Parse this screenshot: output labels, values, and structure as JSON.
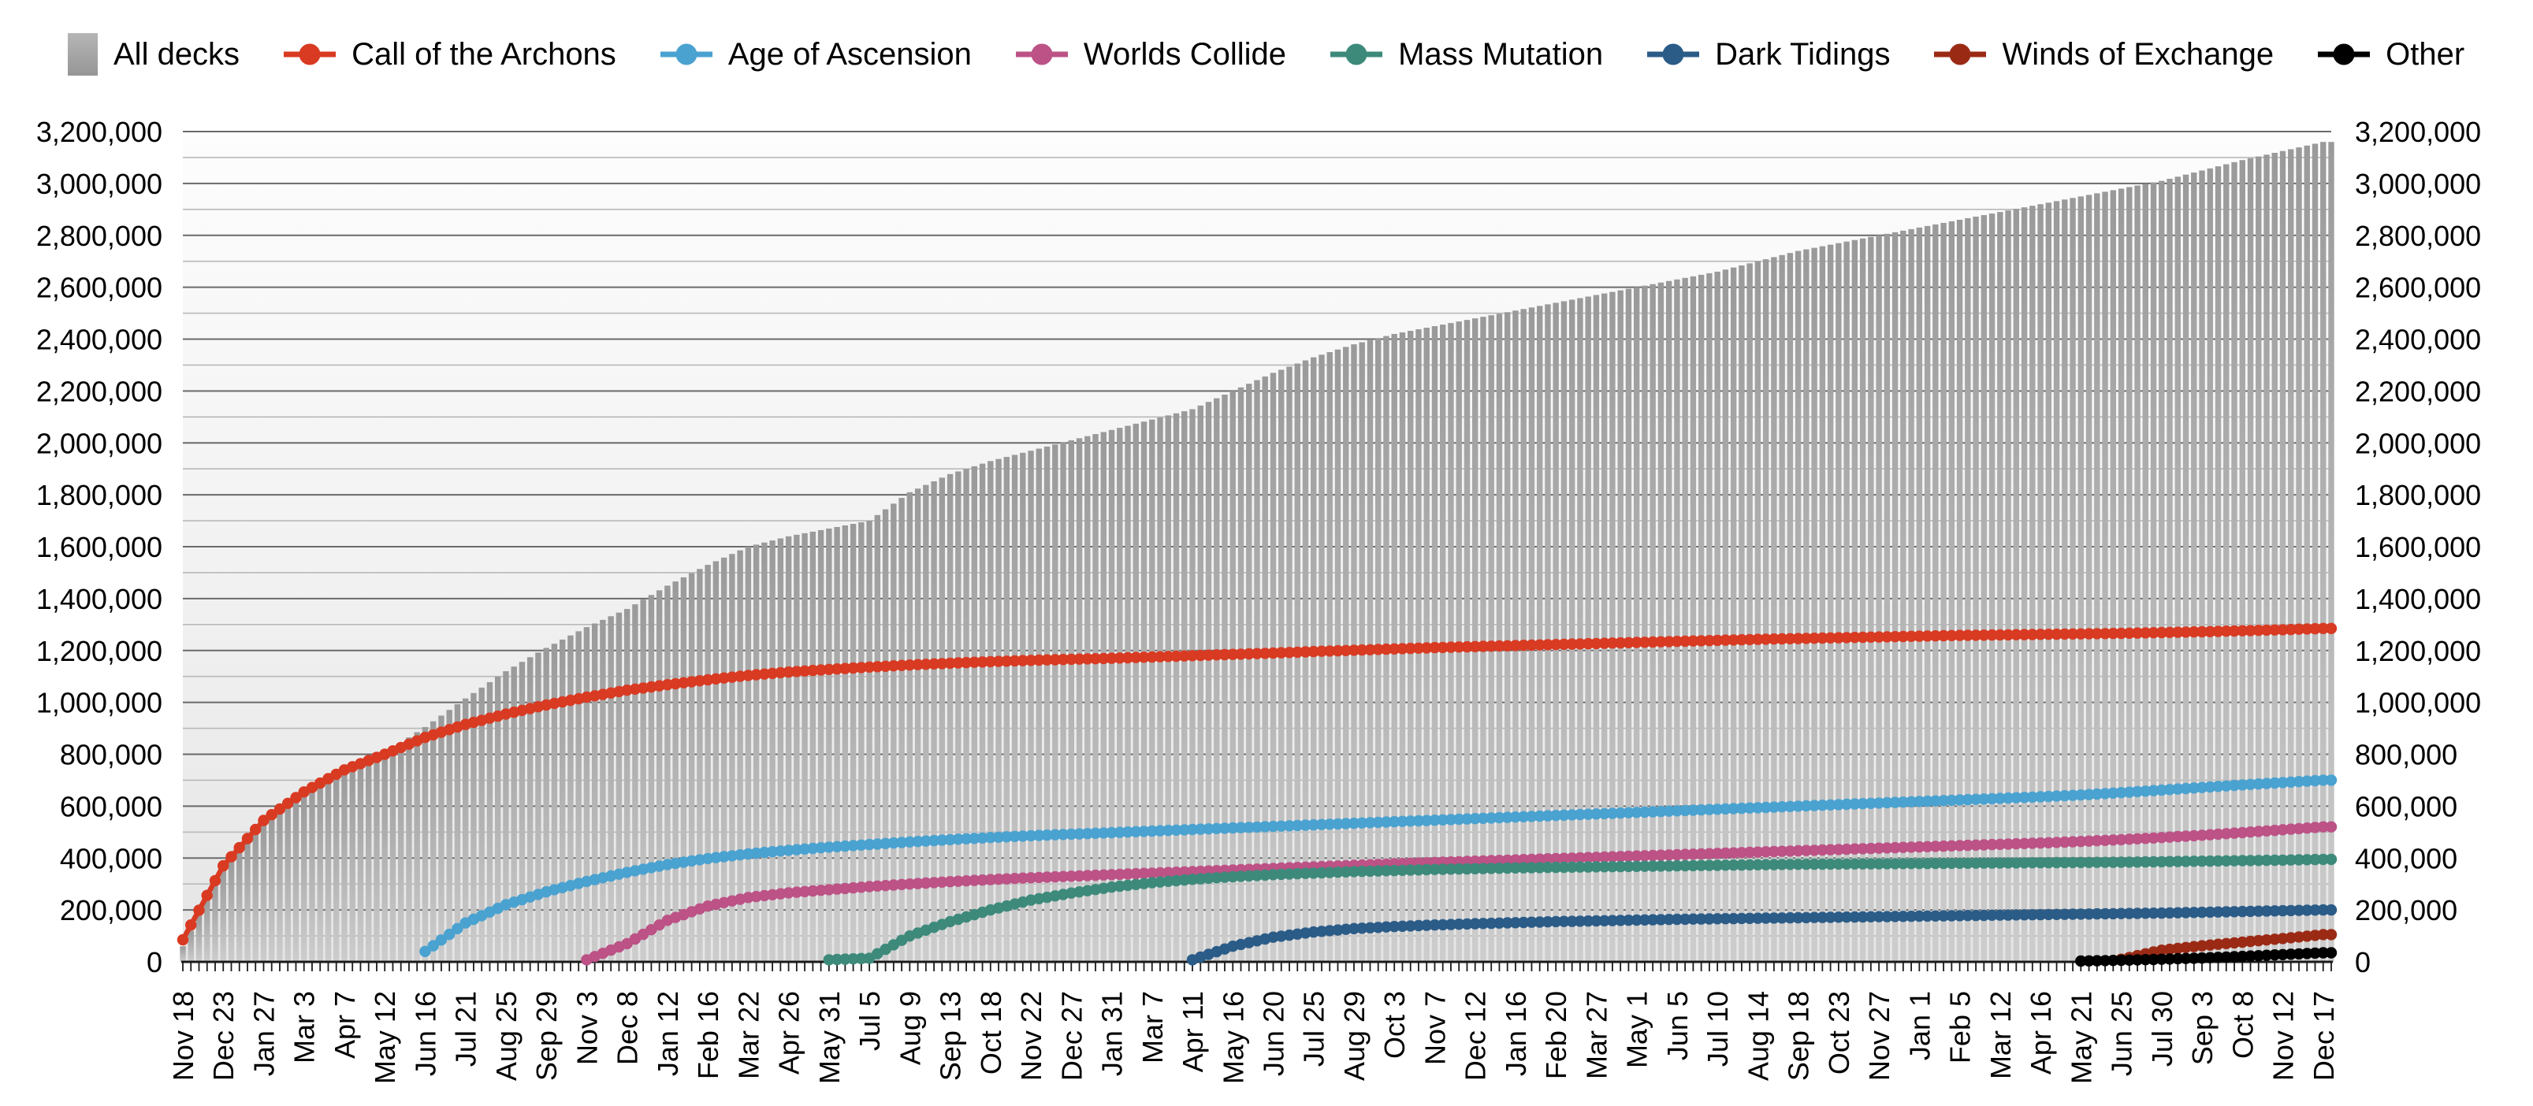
{
  "legend": {
    "items": [
      {
        "label": "All decks",
        "marker": "square",
        "color": "#a9a9a9"
      },
      {
        "label": "Call of the Archons",
        "marker": "circle",
        "color": "#d93a22"
      },
      {
        "label": "Age of Ascension",
        "marker": "circle",
        "color": "#4aa2d0"
      },
      {
        "label": "Worlds Collide",
        "marker": "circle",
        "color": "#bc5286"
      },
      {
        "label": "Mass Mutation",
        "marker": "circle",
        "color": "#3d8a7b"
      },
      {
        "label": "Dark Tidings",
        "marker": "circle",
        "color": "#2b5c88"
      },
      {
        "label": "Winds of Exchange",
        "marker": "circle",
        "color": "#9b2a15"
      },
      {
        "label": "Other",
        "marker": "circle",
        "color": "#000000"
      }
    ]
  },
  "chart_data": {
    "type": "bar",
    "subtype": "cumulative-bars-with-line-overlays",
    "legend_position": "top",
    "grid": true,
    "categories": [
      "Nov 18",
      "Dec 23",
      "Jan 27",
      "Mar 3",
      "Apr 7",
      "May 12",
      "Jun 16",
      "Jul 21",
      "Aug 25",
      "Sep 29",
      "Nov 3",
      "Dec 8",
      "Jan 12",
      "Feb 16",
      "Mar 22",
      "Apr 26",
      "May 31",
      "Jul 5",
      "Aug 9",
      "Sep 13",
      "Oct 18",
      "Nov 22",
      "Dec 27",
      "Jan 31",
      "Mar 7",
      "Apr 11",
      "May 16",
      "Jun 20",
      "Jul 25",
      "Aug 29",
      "Oct 3",
      "Nov 7",
      "Dec 12",
      "Jan 16",
      "Feb 20",
      "Mar 27",
      "May 1",
      "Jun 5",
      "Jul 10",
      "Aug 14",
      "Sep 18",
      "Oct 23",
      "Nov 27",
      "Jan 1",
      "Feb 5",
      "Mar 12",
      "Apr 16",
      "May 21",
      "Jun 25",
      "Jul 30",
      "Sep 3",
      "Oct 8",
      "Nov 12",
      "Dec 17"
    ],
    "weeks_per_label": 5,
    "total_weeks": 266,
    "y_axis": {
      "min": 0,
      "max": 3200000,
      "major_step": 200000,
      "minor_step": 100000,
      "dual": true,
      "tick_labels": [
        "0",
        "200,000",
        "400,000",
        "600,000",
        "800,000",
        "1,000,000",
        "1,200,000",
        "1,400,000",
        "1,600,000",
        "1,800,000",
        "2,000,000",
        "2,200,000",
        "2,400,000",
        "2,600,000",
        "2,800,000",
        "3,000,000",
        "3,200,000"
      ]
    },
    "series": [
      {
        "name": "All decks",
        "render": "bar",
        "color": "#a9a9a9",
        "values": [
          60000,
          360000,
          535000,
          650000,
          735000,
          805000,
          905000,
          1015000,
          1120000,
          1210000,
          1290000,
          1360000,
          1450000,
          1530000,
          1600000,
          1640000,
          1670000,
          1700000,
          1810000,
          1880000,
          1930000,
          1970000,
          2010000,
          2050000,
          2090000,
          2130000,
          2200000,
          2270000,
          2330000,
          2380000,
          2420000,
          2450000,
          2480000,
          2510000,
          2540000,
          2570000,
          2600000,
          2630000,
          2660000,
          2700000,
          2740000,
          2770000,
          2800000,
          2830000,
          2860000,
          2890000,
          2920000,
          2950000,
          2980000,
          3010000,
          3050000,
          3090000,
          3125000,
          3160000
        ]
      },
      {
        "name": "Call of the Archons",
        "render": "line",
        "color": "#d93a22",
        "values": [
          85000,
          370000,
          545000,
          655000,
          740000,
          800000,
          865000,
          915000,
          955000,
          990000,
          1020000,
          1047000,
          1068000,
          1087000,
          1104000,
          1117000,
          1127000,
          1136000,
          1144000,
          1151000,
          1157000,
          1162000,
          1166000,
          1170000,
          1175000,
          1180000,
          1185000,
          1190000,
          1196000,
          1201000,
          1206000,
          1211000,
          1215000,
          1219000,
          1223000,
          1227000,
          1231000,
          1235000,
          1239000,
          1243000,
          1246000,
          1249000,
          1252000,
          1255000,
          1258000,
          1260000,
          1262000,
          1264000,
          1266000,
          1269000,
          1272000,
          1276000,
          1280000,
          1285000
        ]
      },
      {
        "name": "Age of Ascension",
        "render": "line",
        "color": "#4aa2d0",
        "values": [
          null,
          null,
          null,
          null,
          null,
          null,
          40000,
          150000,
          220000,
          270000,
          310000,
          345000,
          375000,
          398000,
          416000,
          430000,
          442000,
          452000,
          462000,
          471000,
          479000,
          486000,
          492000,
          498000,
          504000,
          510000,
          516000,
          522000,
          528000,
          534000,
          540000,
          546000,
          552000,
          558000,
          564000,
          570000,
          576000,
          582000,
          588000,
          594000,
          600000,
          606000,
          612000,
          618000,
          624000,
          630000,
          636000,
          643000,
          652000,
          662000,
          672000,
          682000,
          691000,
          700000
        ]
      },
      {
        "name": "Worlds Collide",
        "render": "line",
        "color": "#bc5286",
        "values": [
          null,
          null,
          null,
          null,
          null,
          null,
          null,
          null,
          null,
          null,
          8000,
          70000,
          160000,
          215000,
          248000,
          266000,
          278000,
          290000,
          300000,
          309000,
          317000,
          324000,
          330000,
          336000,
          342000,
          348000,
          354000,
          360000,
          366000,
          372000,
          378000,
          383000,
          388000,
          393000,
          398000,
          403000,
          408000,
          413000,
          418000,
          423000,
          428000,
          433000,
          438000,
          443000,
          448000,
          453000,
          458000,
          464000,
          471000,
          479000,
          488000,
          498000,
          509000,
          520000
        ]
      },
      {
        "name": "Mass Mutation",
        "render": "line",
        "color": "#3d8a7b",
        "values": [
          null,
          null,
          null,
          null,
          null,
          null,
          null,
          null,
          null,
          null,
          null,
          null,
          null,
          null,
          null,
          null,
          8000,
          14000,
          100000,
          155000,
          200000,
          238000,
          265000,
          288000,
          305000,
          318000,
          328000,
          336000,
          342000,
          348000,
          352000,
          356000,
          359000,
          362000,
          364000,
          366000,
          368000,
          370000,
          372000,
          374000,
          376000,
          377000,
          378000,
          379000,
          380000,
          381000,
          382000,
          383000,
          384000,
          386000,
          388000,
          390000,
          392000,
          395000
        ]
      },
      {
        "name": "Dark Tidings",
        "render": "line",
        "color": "#2b5c88",
        "values": [
          null,
          null,
          null,
          null,
          null,
          null,
          null,
          null,
          null,
          null,
          null,
          null,
          null,
          null,
          null,
          null,
          null,
          null,
          null,
          null,
          null,
          null,
          null,
          null,
          null,
          8000,
          60000,
          95000,
          115000,
          128000,
          136000,
          142000,
          147000,
          151000,
          155000,
          158000,
          161000,
          164000,
          166000,
          168000,
          170000,
          172000,
          174000,
          176000,
          178000,
          180000,
          182000,
          184000,
          186000,
          188000,
          191000,
          194000,
          197000,
          200000
        ]
      },
      {
        "name": "Winds of Exchange",
        "render": "line",
        "color": "#9b2a15",
        "values": [
          null,
          null,
          null,
          null,
          null,
          null,
          null,
          null,
          null,
          null,
          null,
          null,
          null,
          null,
          null,
          null,
          null,
          null,
          null,
          null,
          null,
          null,
          null,
          null,
          null,
          null,
          null,
          null,
          null,
          null,
          null,
          null,
          null,
          null,
          null,
          null,
          null,
          null,
          null,
          null,
          null,
          null,
          null,
          null,
          null,
          null,
          null,
          null,
          10000,
          45000,
          62000,
          76000,
          90000,
          105000
        ]
      },
      {
        "name": "Other",
        "render": "line",
        "color": "#000000",
        "values": [
          null,
          null,
          null,
          null,
          null,
          null,
          null,
          null,
          null,
          null,
          null,
          null,
          null,
          null,
          null,
          null,
          null,
          null,
          null,
          null,
          null,
          null,
          null,
          null,
          null,
          null,
          null,
          null,
          null,
          null,
          null,
          null,
          null,
          null,
          null,
          null,
          null,
          null,
          null,
          null,
          null,
          null,
          null,
          null,
          null,
          null,
          null,
          3000,
          6000,
          10000,
          15000,
          21000,
          28000,
          35000
        ]
      }
    ]
  }
}
